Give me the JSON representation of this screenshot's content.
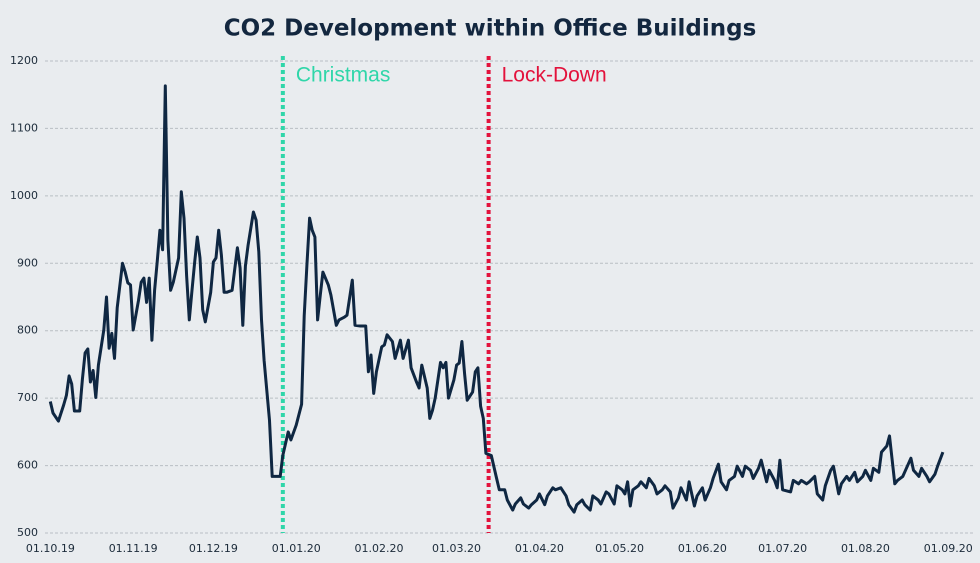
{
  "chart_data": {
    "type": "line",
    "title": "CO2 Development within Office Buildings",
    "color": "#0f2742",
    "x": [
      "01.10.19",
      "02.10.19",
      "04.10.19",
      "06.10.19",
      "07.10.19",
      "08.10.19",
      "09.10.19",
      "10.10.19",
      "12.10.19",
      "13.10.19",
      "14.10.19",
      "15.10.19",
      "16.10.19",
      "17.10.19",
      "18.10.19",
      "19.10.19",
      "21.10.19",
      "22.10.19",
      "23.10.19",
      "24.10.19",
      "25.10.19",
      "26.10.19",
      "28.10.19",
      "29.10.19",
      "30.10.19",
      "31.10.19",
      "01.11.19",
      "03.11.19",
      "04.11.19",
      "05.11.19",
      "06.11.19",
      "07.11.19",
      "08.11.19",
      "09.11.19",
      "10.11.19",
      "11.11.19",
      "12.11.19",
      "13.11.19",
      "14.11.19",
      "15.11.19",
      "16.11.19",
      "18.11.19",
      "19.11.19",
      "20.11.19",
      "21.11.19",
      "22.11.19",
      "23.11.19",
      "24.11.19",
      "25.11.19",
      "26.11.19",
      "27.11.19",
      "28.11.19",
      "30.11.19",
      "01.12.19",
      "02.12.19",
      "03.12.19",
      "04.12.19",
      "05.12.19",
      "06.12.19",
      "08.12.19",
      "10.12.19",
      "11.12.19",
      "12.12.19",
      "13.12.19",
      "14.12.19",
      "16.12.19",
      "17.12.19",
      "18.12.19",
      "19.12.19",
      "20.12.19",
      "22.12.19",
      "23.12.19",
      "25.12.19",
      "26.12.19",
      "27.12.19",
      "29.12.19",
      "30.12.19",
      "01.01.20",
      "03.01.20",
      "04.01.20",
      "05.01.20",
      "06.01.20",
      "07.01.20",
      "08.01.20",
      "09.01.20",
      "10.01.20",
      "11.01.20",
      "13.01.20",
      "14.01.20",
      "16.01.20",
      "17.01.20",
      "19.01.20",
      "20.01.20",
      "22.01.20",
      "23.01.20",
      "25.01.20",
      "27.01.20",
      "28.01.20",
      "29.01.20",
      "30.01.20",
      "31.01.20",
      "02.02.20",
      "03.02.20",
      "04.02.20",
      "06.02.20",
      "07.02.20",
      "09.02.20",
      "10.02.20",
      "12.02.20",
      "13.02.20",
      "15.02.20",
      "16.02.20",
      "17.02.20",
      "19.02.20",
      "20.02.20",
      "21.02.20",
      "22.02.20",
      "24.02.20",
      "25.02.20",
      "26.02.20",
      "27.02.20",
      "29.02.20",
      "01.03.20",
      "02.03.20",
      "03.03.20",
      "04.03.20",
      "05.03.20",
      "07.03.20",
      "08.03.20",
      "09.03.20",
      "10.03.20",
      "11.03.20",
      "12.03.20",
      "14.03.20",
      "16.03.20",
      "17.03.20",
      "19.03.20",
      "20.03.20",
      "22.03.20",
      "23.03.20",
      "25.03.20",
      "26.03.20",
      "28.03.20",
      "29.03.20",
      "31.03.20",
      "01.04.20",
      "03.04.20",
      "04.04.20",
      "06.04.20",
      "07.04.20",
      "09.04.20",
      "11.04.20",
      "12.04.20",
      "14.04.20",
      "15.04.20",
      "17.04.20",
      "18.04.20",
      "20.04.20",
      "21.04.20",
      "23.04.20",
      "24.04.20",
      "26.04.20",
      "27.04.20",
      "29.04.20",
      "30.04.20",
      "02.05.20",
      "03.05.20",
      "04.05.20",
      "05.05.20",
      "06.05.20",
      "08.05.20",
      "09.05.20",
      "11.05.20",
      "12.05.20",
      "14.05.20",
      "15.05.20",
      "17.05.20",
      "18.05.20",
      "20.05.20",
      "21.05.20",
      "23.05.20",
      "24.05.20",
      "26.05.20",
      "27.05.20",
      "29.05.20",
      "30.05.20",
      "01.06.20",
      "02.06.20",
      "04.06.20",
      "05.06.20",
      "07.06.20",
      "08.06.20",
      "10.06.20",
      "11.06.20",
      "13.06.20",
      "14.06.20",
      "16.06.20",
      "17.06.20",
      "19.06.20",
      "20.06.20",
      "22.06.20",
      "23.06.20",
      "25.06.20",
      "26.06.20",
      "28.06.20",
      "29.06.20",
      "30.06.20",
      "01.07.20",
      "04.07.20",
      "05.07.20",
      "07.07.20",
      "08.07.20",
      "10.07.20",
      "11.07.20",
      "13.07.20",
      "14.07.20",
      "16.07.20",
      "17.07.20",
      "19.07.20",
      "20.07.20",
      "22.07.20",
      "23.07.20",
      "25.07.20",
      "26.07.20",
      "28.07.20",
      "29.07.20",
      "31.07.20",
      "01.08.20",
      "03.08.20",
      "04.08.20",
      "06.08.20",
      "07.08.20",
      "09.08.20",
      "10.08.20",
      "12.08.20",
      "13.08.20",
      "15.08.20",
      "16.08.20",
      "18.08.20",
      "19.08.20",
      "21.08.20",
      "22.08.20",
      "24.08.20",
      "25.08.20",
      "27.08.20",
      "28.08.20",
      "30.08.20"
    ],
    "values": [
      695,
      678,
      666,
      690,
      704,
      733,
      721,
      681,
      681,
      728,
      767,
      773,
      724,
      741,
      701,
      749,
      801,
      850,
      774,
      796,
      759,
      834,
      900,
      887,
      871,
      868,
      801,
      845,
      872,
      878,
      842,
      878,
      786,
      860,
      902,
      949,
      920,
      1163,
      934,
      860,
      872,
      908,
      1006,
      967,
      882,
      816,
      860,
      902,
      939,
      908,
      831,
      813,
      857,
      902,
      908,
      949,
      912,
      857,
      857,
      860,
      923,
      893,
      808,
      896,
      927,
      976,
      964,
      917,
      816,
      756,
      667,
      584,
      584,
      584,
      615,
      650,
      638,
      660,
      691,
      822,
      897,
      967,
      949,
      939,
      816,
      853,
      887,
      868,
      853,
      808,
      816,
      820,
      823,
      875,
      808,
      807,
      807,
      739,
      764,
      707,
      739,
      776,
      779,
      794,
      784,
      759,
      786,
      759,
      786,
      745,
      724,
      715,
      749,
      715,
      670,
      682,
      700,
      753,
      745,
      753,
      700,
      727,
      749,
      752,
      784,
      736,
      697,
      709,
      739,
      745,
      688,
      670,
      618,
      615,
      581,
      564,
      564,
      549,
      534,
      543,
      552,
      543,
      537,
      542,
      549,
      558,
      542,
      555,
      567,
      564,
      567,
      555,
      542,
      531,
      542,
      549,
      542,
      534,
      555,
      549,
      543,
      561,
      558,
      543,
      570,
      564,
      558,
      576,
      540,
      564,
      570,
      576,
      567,
      581,
      570,
      558,
      564,
      570,
      561,
      537,
      552,
      567,
      549,
      576,
      540,
      555,
      567,
      549,
      567,
      581,
      602,
      576,
      564,
      578,
      584,
      599,
      584,
      599,
      593,
      581,
      596,
      608,
      576,
      593,
      578,
      567,
      608,
      564,
      561,
      578,
      573,
      578,
      573,
      576,
      584,
      558,
      549,
      570,
      593,
      599,
      558,
      573,
      584,
      578,
      590,
      576,
      584,
      593,
      578,
      596,
      590,
      620,
      629,
      644,
      573,
      578,
      584,
      593,
      611,
      593,
      584,
      596,
      584,
      576,
      587,
      599,
      620
    ],
    "xlim": [
      "29.09.19",
      "11.09.20"
    ],
    "xticks": [
      "01.10.19",
      "01.11.19",
      "01.12.19",
      "01.01.20",
      "01.02.20",
      "01.03.20",
      "01.04.20",
      "01.05.20",
      "01.06.20",
      "01.07.20",
      "01.08.20",
      "01.09.20"
    ],
    "ylim": [
      500,
      1200
    ],
    "yticks": [
      500,
      600,
      700,
      800,
      900,
      1000,
      1100,
      1200
    ],
    "grid": true,
    "annotations": [
      {
        "x": "27.12.19",
        "text": "Christmas",
        "color": "#2fd6a9"
      },
      {
        "x": "13.03.20",
        "text": "Lock-Down",
        "color": "#e3123c"
      }
    ]
  }
}
